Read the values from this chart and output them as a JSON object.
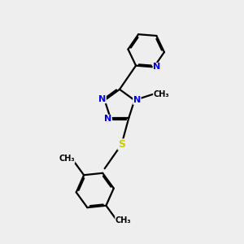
{
  "bg_color": "#eeeeee",
  "bond_color": "#000000",
  "N_color": "#0000ee",
  "S_color": "#cccc00",
  "line_width": 1.6,
  "figsize": [
    3.0,
    3.0
  ],
  "dpi": 100,
  "xlim": [
    0,
    10
  ],
  "ylim": [
    0,
    10
  ]
}
